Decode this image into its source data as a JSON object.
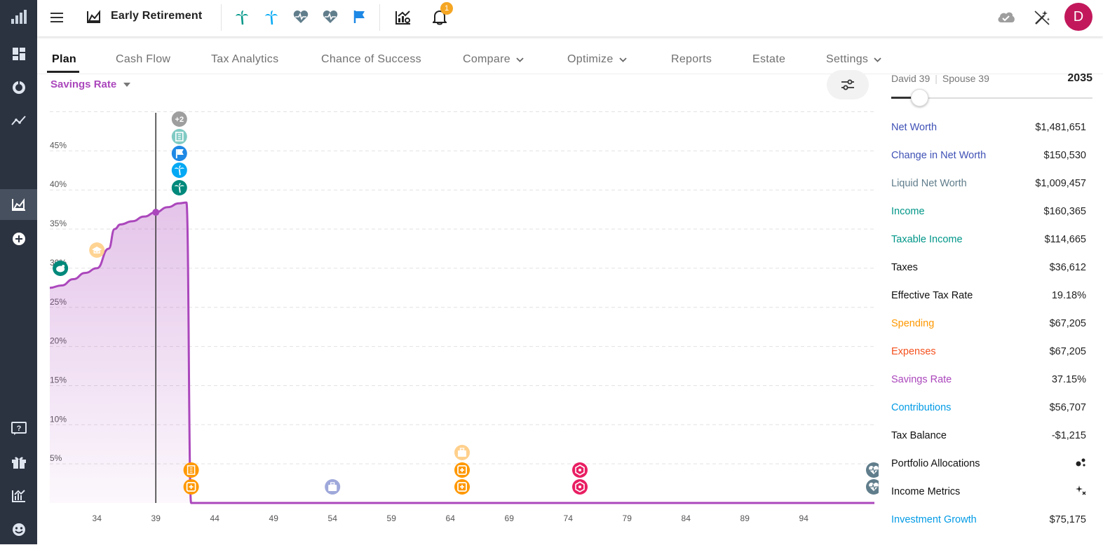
{
  "app": {
    "title": "Early Retirement",
    "notifications_count": "1",
    "user_initial": "D"
  },
  "colors": {
    "rail": "#2b3240",
    "accent_purple": "#ab47bc",
    "teal": "#009688",
    "blue": "#1e88e5",
    "orange": "#ff9800",
    "pink": "#e91e63",
    "indigo": "#3f51b5"
  },
  "rail_icons": [
    "bar-chart-logo",
    "dashboard",
    "donut",
    "trend",
    "area-chart",
    "add-circle",
    "help",
    "gift",
    "analytics",
    "smile"
  ],
  "toolbar_icons": [
    "menu",
    "palm-tree-green",
    "palm-tree-blue",
    "heartbeat",
    "heartbeat",
    "flag",
    "chart-settings",
    "bell",
    "cloud",
    "magic-wand"
  ],
  "tabs": [
    {
      "label": "Plan",
      "active": true
    },
    {
      "label": "Cash Flow"
    },
    {
      "label": "Tax Analytics"
    },
    {
      "label": "Chance of Success"
    },
    {
      "label": "Compare",
      "dropdown": true
    },
    {
      "label": "Optimize",
      "dropdown": true
    },
    {
      "label": "Reports"
    },
    {
      "label": "Estate"
    },
    {
      "label": "Settings",
      "dropdown": true
    }
  ],
  "chart": {
    "metric": "Savings Rate",
    "event_more": "+2"
  },
  "chart_data": {
    "type": "area",
    "title": "Savings Rate",
    "xlabel": "",
    "ylabel": "",
    "x_ticks": [
      "34",
      "39",
      "44",
      "49",
      "54",
      "59",
      "64",
      "69",
      "74",
      "79",
      "84",
      "89",
      "94"
    ],
    "y_ticks": [
      "5%",
      "10%",
      "15%",
      "20%",
      "25%",
      "30%",
      "35%",
      "40%",
      "45%"
    ],
    "ylim": [
      0,
      50
    ],
    "xlim": [
      30,
      100
    ],
    "grid": true,
    "selected_age": 39,
    "series": [
      {
        "color": "#ab47bc",
        "x": [
          30,
          31,
          32,
          33,
          34,
          35,
          35.5,
          36,
          37,
          38,
          39,
          40,
          41,
          41.6,
          42,
          43,
          50,
          60,
          70,
          80,
          90,
          100
        ],
        "y": [
          27.5,
          27.8,
          28.6,
          29.4,
          30.0,
          32.5,
          35.0,
          35.6,
          36.0,
          36.6,
          37.15,
          37.8,
          38.3,
          38.4,
          0.0,
          0.0,
          0.0,
          0.0,
          0.0,
          0.0,
          0.0,
          0.0
        ]
      }
    ]
  },
  "panel": {
    "ages": {
      "primary": "David 39",
      "spouse": "Spouse 39"
    },
    "year": "2035",
    "slider_fraction": 0.13,
    "metrics": [
      {
        "label": "Net Worth",
        "value": "$1,481,651",
        "color": "#3f51b5"
      },
      {
        "label": "Change in Net Worth",
        "value": "$150,530",
        "color": "#3f51b5"
      },
      {
        "label": "Liquid Net Worth",
        "value": "$1,009,457",
        "color": "#607d8b"
      },
      {
        "label": "Income",
        "value": "$160,365",
        "color": "#009688"
      },
      {
        "label": "Taxable Income",
        "value": "$114,665",
        "color": "#009688"
      },
      {
        "label": "Taxes",
        "value": "$36,612",
        "color": "#111111"
      },
      {
        "label": "Effective Tax Rate",
        "value": "19.18%",
        "color": "#111111"
      },
      {
        "label": "Spending",
        "value": "$67,205",
        "color": "#ff9800"
      },
      {
        "label": "Expenses",
        "value": "$67,205",
        "color": "#f4511e"
      },
      {
        "label": "Savings Rate",
        "value": "37.15%",
        "color": "#ab47bc"
      },
      {
        "label": "Contributions",
        "value": "$56,707",
        "color": "#039be5"
      },
      {
        "label": "Tax Balance",
        "value": "-$1,215",
        "color": "#111111"
      },
      {
        "label": "Portfolio Allocations",
        "value": "",
        "color": "#111111",
        "icon": "scatter-dots"
      },
      {
        "label": "Income Metrics",
        "value": "",
        "color": "#111111",
        "icon": "sparkle"
      },
      {
        "label": "Investment Growth",
        "value": "$75,175",
        "color": "#039be5"
      }
    ]
  }
}
